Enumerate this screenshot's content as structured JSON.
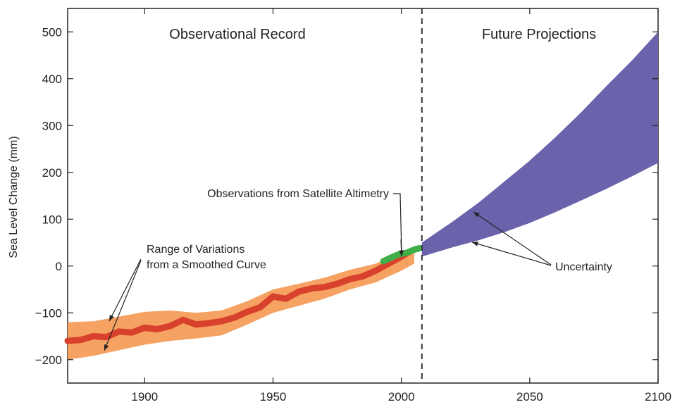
{
  "chart_data": {
    "type": "area",
    "title": "",
    "xlabel": "",
    "ylabel": "Sea Level Change (mm)",
    "xlim": [
      1870,
      2100
    ],
    "ylim": [
      -250,
      550
    ],
    "x_ticks": [
      1900,
      1950,
      2000,
      2050,
      2100
    ],
    "y_ticks": [
      -200,
      -100,
      0,
      100,
      200,
      300,
      400,
      500
    ],
    "grid": false,
    "divider_x": 2008,
    "region_labels": {
      "observational": "Observational Record",
      "future": "Future Projections"
    },
    "annotations": {
      "range": [
        "Range of Variations",
        "from a Smoothed Curve"
      ],
      "satellite": "Observations from Satellite Altimetry",
      "uncertainty": "Uncertainty"
    },
    "colors": {
      "range_band": "#f5a263",
      "observed_line": "#d8412b",
      "satellite": "#3fae49",
      "projection_band": "#6a63ac",
      "divider": "#333333"
    },
    "series": [
      {
        "type": "band",
        "x": [
          1870,
          1880,
          1890,
          1900,
          1910,
          1920,
          1930,
          1940,
          1950,
          1960,
          1970,
          1980,
          1990,
          2000,
          2005
        ],
        "lower": [
          -200,
          -192,
          -180,
          -168,
          -160,
          -155,
          -148,
          -125,
          -100,
          -85,
          -70,
          -50,
          -35,
          -10,
          5
        ],
        "upper": [
          -120,
          -118,
          -108,
          -98,
          -95,
          -100,
          -95,
          -75,
          -50,
          -38,
          -25,
          -8,
          5,
          30,
          38
        ]
      },
      {
        "type": "line",
        "x": [
          1870,
          1875,
          1880,
          1885,
          1890,
          1895,
          1900,
          1905,
          1910,
          1915,
          1920,
          1925,
          1930,
          1935,
          1940,
          1945,
          1950,
          1955,
          1960,
          1965,
          1970,
          1975,
          1980,
          1985,
          1990,
          1995,
          2000,
          2003
        ],
        "y": [
          -160,
          -158,
          -150,
          -152,
          -140,
          -142,
          -132,
          -135,
          -128,
          -115,
          -125,
          -122,
          -118,
          -110,
          -98,
          -88,
          -65,
          -70,
          -55,
          -48,
          -45,
          -38,
          -28,
          -22,
          -10,
          5,
          20,
          30
        ]
      },
      {
        "type": "line",
        "x": [
          1993,
          1996,
          1999,
          2002,
          2005,
          2007
        ],
        "y": [
          10,
          18,
          25,
          28,
          35,
          38
        ]
      },
      {
        "type": "band",
        "x": [
          2008,
          2020,
          2030,
          2040,
          2050,
          2060,
          2070,
          2080,
          2090,
          2100
        ],
        "lower": [
          20,
          40,
          55,
          72,
          92,
          115,
          140,
          165,
          192,
          220
        ],
        "upper": [
          50,
          95,
          135,
          180,
          225,
          275,
          328,
          385,
          440,
          500
        ]
      }
    ]
  }
}
